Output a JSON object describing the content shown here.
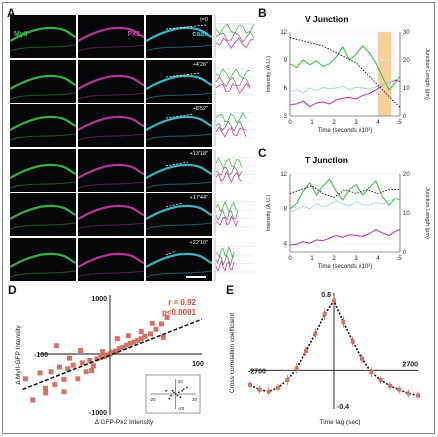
{
  "panel_labels": {
    "a": "A",
    "b": "B",
    "c": "C",
    "d": "D",
    "e": "E"
  },
  "channels": {
    "myo": "MyII",
    "pk2": "Pk2",
    "caax": "caax"
  },
  "times": [
    "t=0",
    "+4'26\"",
    "+8'52\"",
    "+13'18\"",
    "+17'44\"",
    "+22'10\""
  ],
  "colors": {
    "green": "#3fbf4a",
    "magenta": "#c43ca8",
    "cyan": "#40c8d4",
    "orange": "#f4c27a",
    "red": "#d8443c",
    "scatter": "#d27568"
  },
  "chart_data": [
    {
      "type": "line",
      "title": "V Junction",
      "xlabel": "Time (seconds x10²)",
      "ylabel": "Intensity (A.U.)",
      "y2label": "Junction Length (μm)",
      "xlim": [
        0,
        5
      ],
      "ylim": [
        3,
        12
      ],
      "y2lim": [
        0,
        30
      ],
      "xticks": [
        0,
        1,
        2,
        3,
        4,
        5
      ],
      "yticks": [
        3,
        6,
        9,
        12
      ],
      "y2ticks": [
        0,
        10,
        20,
        30
      ],
      "highlight_x": [
        4.0,
        4.6
      ],
      "series": [
        {
          "x": [
            0,
            0.3,
            0.6,
            0.9,
            1.2,
            1.5,
            1.8,
            2.1,
            2.4,
            2.7,
            3.0,
            3.3,
            3.6,
            3.9,
            4.2,
            4.5,
            4.8,
            5.0
          ],
          "values": [
            8.6,
            8.2,
            9.0,
            8.5,
            8.9,
            8.3,
            8.6,
            9.3,
            10.4,
            9.0,
            9.6,
            10.5,
            9.8,
            8.7,
            7.2,
            5.8,
            6.6,
            7.3
          ]
        },
        {
          "x": [
            0,
            0.3,
            0.6,
            0.9,
            1.2,
            1.5,
            1.8,
            2.1,
            2.4,
            2.7,
            3.0,
            3.3,
            3.6,
            3.9,
            4.2,
            4.5,
            4.8,
            5.0
          ],
          "values": [
            4.2,
            4.3,
            4.6,
            4.0,
            4.4,
            4.5,
            4.3,
            4.7,
            4.9,
            5.0,
            4.8,
            5.2,
            5.4,
            5.8,
            6.3,
            6.6,
            6.8,
            6.7
          ]
        },
        {
          "x": [
            0,
            0.3,
            0.6,
            0.9,
            1.2,
            1.5,
            1.8,
            2.1,
            2.4,
            2.7,
            3.0,
            3.3,
            3.6,
            3.9,
            4.2,
            4.5,
            4.8,
            5.0
          ],
          "values": [
            5.6,
            5.8,
            5.5,
            6.0,
            5.7,
            6.1,
            5.9,
            6.0,
            6.2,
            5.8,
            6.1,
            6.0,
            5.9,
            6.1,
            6.3,
            6.6,
            6.9,
            7.0
          ]
        },
        {
          "x": [
            0,
            0.5,
            1.0,
            1.5,
            2.0,
            2.5,
            3.0,
            3.5,
            4.0,
            4.5,
            5.0
          ],
          "values": [
            28,
            27,
            26,
            25,
            23,
            21,
            19,
            15,
            11,
            7,
            3
          ]
        }
      ]
    },
    {
      "type": "line",
      "title": "T Junction",
      "xlabel": "Time (seconds x10²)",
      "ylabel": "Intensity (A.U.)",
      "y2label": "Junction Length (μm)",
      "xlim": [
        0,
        5
      ],
      "ylim": [
        3,
        12
      ],
      "y2lim": [
        0,
        20
      ],
      "xticks": [
        0,
        1,
        2,
        3,
        4,
        5
      ],
      "yticks": [
        4,
        8,
        12
      ],
      "y2ticks": [
        0,
        10,
        20
      ],
      "series": [
        {
          "x": [
            0,
            0.3,
            0.6,
            0.9,
            1.2,
            1.5,
            1.8,
            2.1,
            2.4,
            2.7,
            3.0,
            3.3,
            3.6,
            3.9,
            4.2,
            4.5,
            4.8,
            5.0
          ],
          "values": [
            8.0,
            8.6,
            10.0,
            11.0,
            9.6,
            10.6,
            11.4,
            10.0,
            9.0,
            10.2,
            10.8,
            9.6,
            10.4,
            11.2,
            9.4,
            8.4,
            9.2,
            9.0
          ]
        },
        {
          "x": [
            0,
            0.3,
            0.6,
            0.9,
            1.2,
            1.5,
            1.8,
            2.1,
            2.4,
            2.7,
            3.0,
            3.3,
            3.6,
            3.9,
            4.2,
            4.5,
            4.8,
            5.0
          ],
          "values": [
            3.8,
            3.9,
            4.2,
            4.0,
            4.4,
            4.3,
            4.6,
            4.9,
            4.7,
            5.0,
            4.9,
            4.8,
            5.1,
            5.6,
            5.2,
            4.9,
            5.4,
            5.6
          ]
        },
        {
          "x": [
            0,
            0.3,
            0.6,
            0.9,
            1.2,
            1.5,
            1.8,
            2.1,
            2.4,
            2.7,
            3.0,
            3.3,
            3.6,
            3.9,
            4.2,
            4.5,
            4.8,
            5.0
          ],
          "values": [
            7.6,
            7.9,
            8.3,
            8.0,
            8.6,
            8.2,
            8.5,
            8.9,
            8.6,
            8.3,
            8.8,
            8.5,
            8.4,
            8.7,
            8.5,
            8.9,
            9.2,
            9.1
          ]
        },
        {
          "x": [
            0,
            0.5,
            1.0,
            1.5,
            2.0,
            2.5,
            3.0,
            3.5,
            4.0,
            4.5,
            5.0
          ],
          "values": [
            15,
            16,
            17,
            15,
            14,
            16,
            15,
            16,
            15,
            16,
            16
          ]
        }
      ]
    },
    {
      "type": "scatter",
      "xlabel": "Δ GFP-Pk2 Intensity",
      "ylabel": "Δ MyII-GFP Intensity",
      "xlim": [
        -100,
        100
      ],
      "ylim": [
        -1000,
        1000
      ],
      "tick_labels": {
        "x_left": "-100",
        "x_right": "100",
        "y_top": "1000",
        "y_bottom": "-1000"
      },
      "annotation_r": "r = 0.92",
      "annotation_p": "p<0.0001",
      "fit": {
        "slope": 6.1,
        "intercept": -20
      },
      "x": [
        -92,
        -84,
        -76,
        -70,
        -64,
        -60,
        -55,
        -50,
        -46,
        -40,
        -35,
        -30,
        -26,
        -22,
        -18,
        -14,
        -10,
        -6,
        -3,
        0,
        3,
        6,
        10,
        14,
        18,
        22,
        26,
        30,
        34,
        38,
        44,
        50,
        56,
        62,
        -58,
        -44,
        -32,
        -20,
        -8,
        8,
        20,
        34,
        -70,
        -50,
        46,
        58
      ],
      "values": [
        -420,
        -780,
        -320,
        -580,
        -300,
        -520,
        -220,
        -430,
        -250,
        -190,
        -420,
        -150,
        -300,
        -110,
        -200,
        -80,
        -60,
        -40,
        -20,
        0,
        30,
        50,
        90,
        110,
        150,
        180,
        200,
        230,
        260,
        300,
        340,
        420,
        510,
        620,
        140,
        -70,
        60,
        -280,
        40,
        260,
        310,
        380,
        -660,
        -640,
        520,
        280
      ],
      "inset": {
        "tick_labels": {
          "x_left": "-20",
          "x_right": "20",
          "y_top": "20",
          "y_bottom": "-20"
        }
      }
    },
    {
      "type": "line",
      "xlabel": "Time lag (sec)",
      "ylabel": "Cross correlation coefficient",
      "xlim": [
        -2700,
        2700
      ],
      "ylim": [
        -0.4,
        0.8
      ],
      "tick_labels": {
        "x_left": "-2700",
        "x_right": "2700",
        "y_top": "0.8",
        "y_bottom": "-0.4"
      },
      "x": [
        -2700,
        -2400,
        -2100,
        -1800,
        -1500,
        -1200,
        -900,
        -600,
        -300,
        0,
        300,
        600,
        900,
        1200,
        1500,
        1800,
        2100,
        2400,
        2700
      ],
      "values": [
        -0.15,
        -0.2,
        -0.22,
        -0.18,
        -0.1,
        0.02,
        0.2,
        0.38,
        0.58,
        0.72,
        0.5,
        0.3,
        0.12,
        -0.02,
        -0.1,
        -0.16,
        -0.2,
        -0.24,
        -0.26
      ],
      "errors": [
        0.04,
        0.04,
        0.04,
        0.04,
        0.05,
        0.05,
        0.05,
        0.05,
        0.06,
        0.06,
        0.06,
        0.05,
        0.05,
        0.05,
        0.04,
        0.04,
        0.04,
        0.04,
        0.04
      ]
    }
  ]
}
